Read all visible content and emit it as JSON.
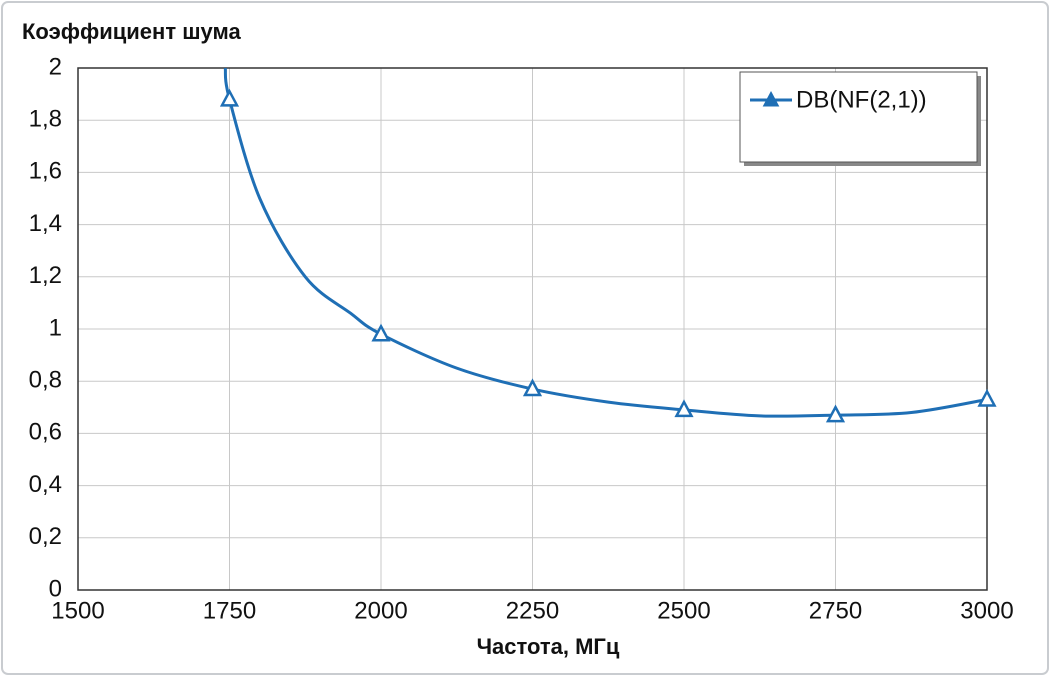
{
  "chart_data": {
    "type": "line",
    "title": "Коэффициент шума",
    "x_label": "Частота, МГц",
    "x": [
      1743,
      1750,
      1800,
      1875,
      1950,
      2000,
      2125,
      2250,
      2375,
      2500,
      2625,
      2750,
      2875,
      3000
    ],
    "series": [
      {
        "name": "DB(NF(2,1))",
        "color": "#1f6fb5",
        "values": [
          2,
          1.88,
          1.5,
          1.2,
          1.06,
          0.98,
          0.85,
          0.77,
          0.72,
          0.69,
          0.667,
          0.67,
          0.68,
          0.73
        ]
      }
    ],
    "xlim": [
      1500,
      3000
    ],
    "xticks": [
      1500,
      1750,
      2000,
      2250,
      2500,
      2750,
      3000
    ],
    "ylim": [
      0,
      2
    ],
    "yticks": [
      0,
      {
        "value": 0.2,
        "label": "0,2"
      },
      {
        "value": 0.4,
        "label": "0,4"
      },
      {
        "value": 0.6,
        "label": "0,6"
      },
      {
        "value": 0.8,
        "label": "0,8"
      },
      1,
      {
        "value": 1.2,
        "label": "1,2"
      },
      {
        "value": 1.4,
        "label": "1,4"
      },
      {
        "value": 1.6,
        "label": "1,6"
      },
      {
        "value": 1.8,
        "label": "1,8"
      },
      2
    ],
    "grid": true,
    "legend": "top-right"
  }
}
